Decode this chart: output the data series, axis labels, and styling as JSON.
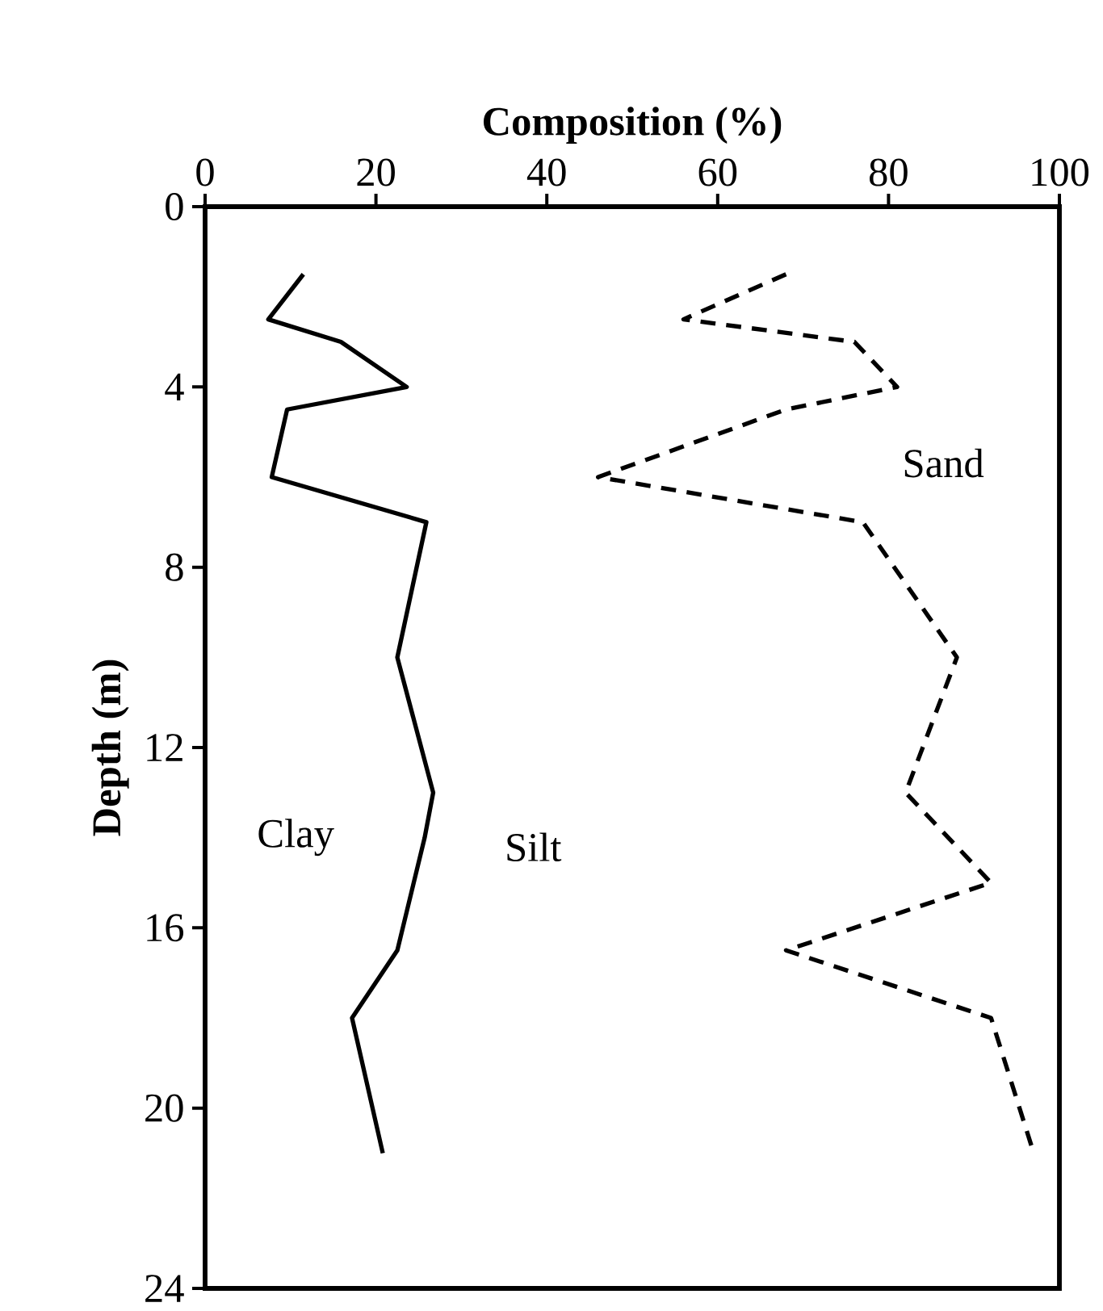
{
  "chart_data": {
    "type": "line",
    "xlabel": "Composition (%)",
    "ylabel": "Depth (m)",
    "xlim": [
      0,
      100
    ],
    "xticks": [
      0,
      20,
      40,
      60,
      80,
      100
    ],
    "ylim": [
      24,
      0
    ],
    "yticks": [
      0,
      4,
      8,
      12,
      16,
      20,
      24
    ],
    "series": [
      {
        "color": "#000000",
        "line_style": "solid",
        "x": [
          11.5,
          7.4,
          15.9,
          23.6,
          9.6,
          7.8,
          25.9,
          22.5,
          26.7,
          25.7,
          22.5,
          17.2,
          20.8
        ],
        "values": [
          1.5,
          2.5,
          3,
          4,
          4.5,
          6,
          7,
          10,
          13,
          14,
          16.5,
          18,
          21
        ]
      },
      {
        "color": "#000000",
        "line_style": "dashed",
        "x": [
          68,
          56,
          76,
          81,
          68,
          46,
          77,
          88,
          82,
          92,
          68,
          92,
          97
        ],
        "values": [
          1.5,
          2.5,
          3,
          4,
          4.5,
          6,
          7,
          10,
          13,
          15,
          16.5,
          18,
          21
        ]
      }
    ],
    "annotations": [
      "Clay",
      "Silt",
      "Sand"
    ],
    "marker": "none",
    "grid": false
  }
}
